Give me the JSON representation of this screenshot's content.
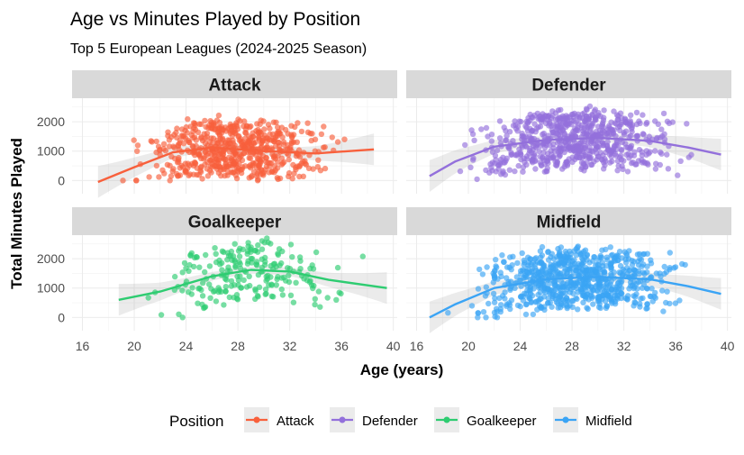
{
  "chart_data": {
    "type": "scatter",
    "title": "Age vs Minutes Played by Position",
    "subtitle": "Top 5 European Leagues (2024-2025 Season)",
    "xlabel": "Age (years)",
    "ylabel": "Total Minutes Played",
    "xlim": [
      15.2,
      40.3
    ],
    "ylim": [
      -450,
      2800
    ],
    "x_ticks": [
      16,
      20,
      24,
      28,
      32,
      36,
      40
    ],
    "y_ticks": [
      0,
      1000,
      2000
    ],
    "grid": true,
    "legend": {
      "title": "Position",
      "position": "bottom",
      "entries": [
        "Attack",
        "Defender",
        "Goalkeeper",
        "Midfield"
      ]
    },
    "colors": {
      "Attack": "#F8603C",
      "Defender": "#9370DB",
      "Goalkeeper": "#2ECC71",
      "Midfield": "#3BA4F5",
      "strip": "#d9d9d9",
      "grid": "#ebebeb"
    },
    "panels": [
      {
        "name": "Attack",
        "n_points": 600,
        "age_range": [
          17,
          38.5
        ],
        "trend": [
          [
            17.2,
            -50
          ],
          [
            20,
            450
          ],
          [
            23,
            960
          ],
          [
            26,
            1120
          ],
          [
            30,
            1000
          ],
          [
            34,
            920
          ],
          [
            38.5,
            1060
          ]
        ]
      },
      {
        "name": "Defender",
        "n_points": 700,
        "age_range": [
          17,
          39.5
        ],
        "trend": [
          [
            17,
            150
          ],
          [
            19,
            650
          ],
          [
            22,
            1150
          ],
          [
            26,
            1380
          ],
          [
            30,
            1450
          ],
          [
            34,
            1350
          ],
          [
            37,
            1120
          ],
          [
            39.5,
            880
          ]
        ]
      },
      {
        "name": "Goalkeeper",
        "n_points": 220,
        "age_range": [
          18.8,
          39.5
        ],
        "trend": [
          [
            18.8,
            600
          ],
          [
            22,
            880
          ],
          [
            26,
            1400
          ],
          [
            29,
            1620
          ],
          [
            32,
            1560
          ],
          [
            35,
            1280
          ],
          [
            39.5,
            1000
          ]
        ]
      },
      {
        "name": "Midfield",
        "n_points": 750,
        "age_range": [
          17,
          39.5
        ],
        "trend": [
          [
            17,
            0
          ],
          [
            19,
            450
          ],
          [
            22,
            1000
          ],
          [
            26,
            1300
          ],
          [
            30,
            1380
          ],
          [
            34,
            1300
          ],
          [
            37,
            1060
          ],
          [
            39.5,
            800
          ]
        ]
      }
    ]
  }
}
